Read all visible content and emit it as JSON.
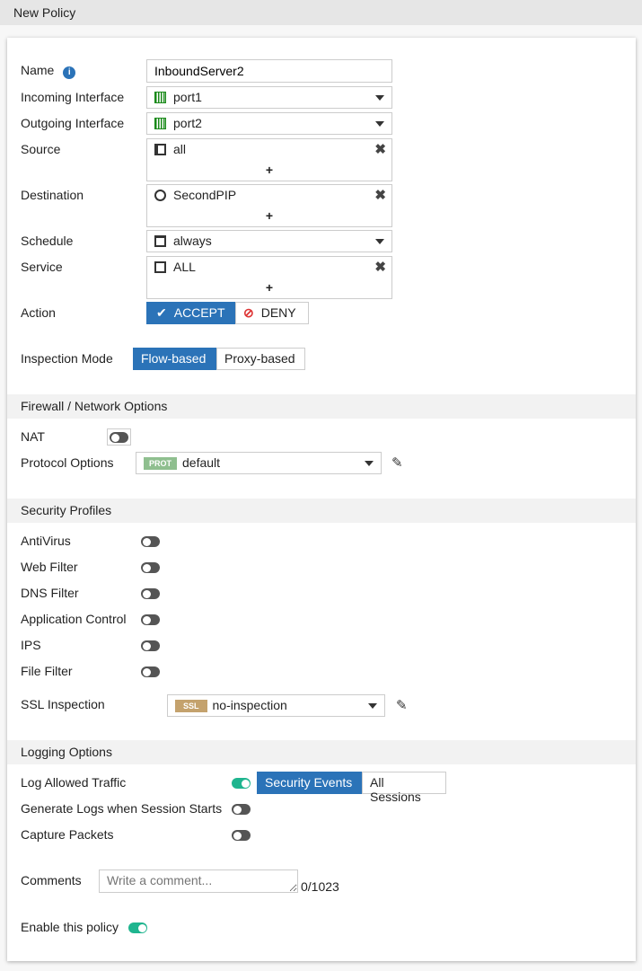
{
  "header": {
    "title": "New Policy"
  },
  "form": {
    "name": {
      "label": "Name",
      "value": "InboundServer2"
    },
    "incoming": {
      "label": "Incoming Interface",
      "value": "port1"
    },
    "outgoing": {
      "label": "Outgoing Interface",
      "value": "port2"
    },
    "source": {
      "label": "Source",
      "value": "all"
    },
    "destination": {
      "label": "Destination",
      "value": "SecondPIP"
    },
    "schedule": {
      "label": "Schedule",
      "value": "always"
    },
    "service": {
      "label": "Service",
      "value": "ALL"
    },
    "action": {
      "label": "Action",
      "accept": "ACCEPT",
      "deny": "DENY",
      "selected": "ACCEPT"
    },
    "inspection": {
      "label": "Inspection Mode",
      "flow": "Flow-based",
      "proxy": "Proxy-based",
      "selected": "Flow-based"
    }
  },
  "firewall": {
    "title": "Firewall / Network Options",
    "nat": {
      "label": "NAT",
      "enabled": false
    },
    "protocol": {
      "label": "Protocol Options",
      "badge": "PROT",
      "value": "default"
    }
  },
  "security": {
    "title": "Security Profiles",
    "items": [
      {
        "label": "AntiVirus",
        "enabled": false
      },
      {
        "label": "Web Filter",
        "enabled": false
      },
      {
        "label": "DNS Filter",
        "enabled": false
      },
      {
        "label": "Application Control",
        "enabled": false
      },
      {
        "label": "IPS",
        "enabled": false
      },
      {
        "label": "File Filter",
        "enabled": false
      }
    ],
    "ssl": {
      "label": "SSL Inspection",
      "badge": "SSL",
      "value": "no-inspection"
    }
  },
  "logging": {
    "title": "Logging Options",
    "log_allowed": {
      "label": "Log Allowed Traffic",
      "enabled": true,
      "security_events": "Security Events",
      "all_sessions": "All Sessions",
      "selected": "Security Events"
    },
    "gen_logs": {
      "label": "Generate Logs when Session Starts",
      "enabled": false
    },
    "capture": {
      "label": "Capture Packets",
      "enabled": false
    }
  },
  "comments": {
    "label": "Comments",
    "placeholder": "Write a comment...",
    "count": "0/1023"
  },
  "enable": {
    "label": "Enable this policy",
    "enabled": true
  },
  "colors": {
    "accent": "#2b73b8",
    "toggle_on": "#1fb58f",
    "prot_badge": "#8fbf8f",
    "ssl_badge": "#c4a26d"
  }
}
